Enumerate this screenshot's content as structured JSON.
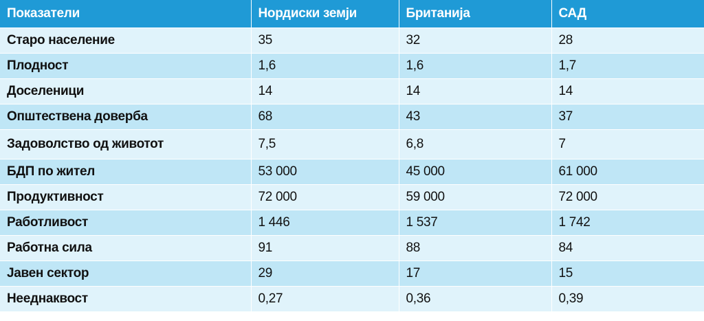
{
  "table": {
    "headers": [
      "Показатели",
      "Нордиски земји",
      "Британија",
      "САД"
    ],
    "rows": [
      [
        "Старо население",
        "35",
        "32",
        "28"
      ],
      [
        "Плодност",
        "1,6",
        "1,6",
        "1,7"
      ],
      [
        "Доселеници",
        "14",
        "14",
        "14"
      ],
      [
        "Општествена доверба",
        "68",
        "43",
        "37"
      ],
      [
        "Задоволство од животот",
        "7,5",
        "6,8",
        "7"
      ],
      [
        "БДП по жител",
        "53 000",
        "45 000",
        "61 000"
      ],
      [
        "Продуктивност",
        "72 000",
        "59 000",
        "72 000"
      ],
      [
        "Работливост",
        " 1 446",
        "1 537",
        "1 742"
      ],
      [
        "Работна сила",
        "91",
        "88",
        "84"
      ],
      [
        "Јавен сектор",
        "29",
        "17",
        "15"
      ],
      [
        "Нееднаквост",
        "0,27",
        "0,36",
        "0,39"
      ]
    ]
  },
  "colors": {
    "header_bg": "#1f9ad6",
    "header_text": "#ffffff",
    "row_light": "#e0f3fb",
    "row_dark": "#bfe6f6"
  }
}
